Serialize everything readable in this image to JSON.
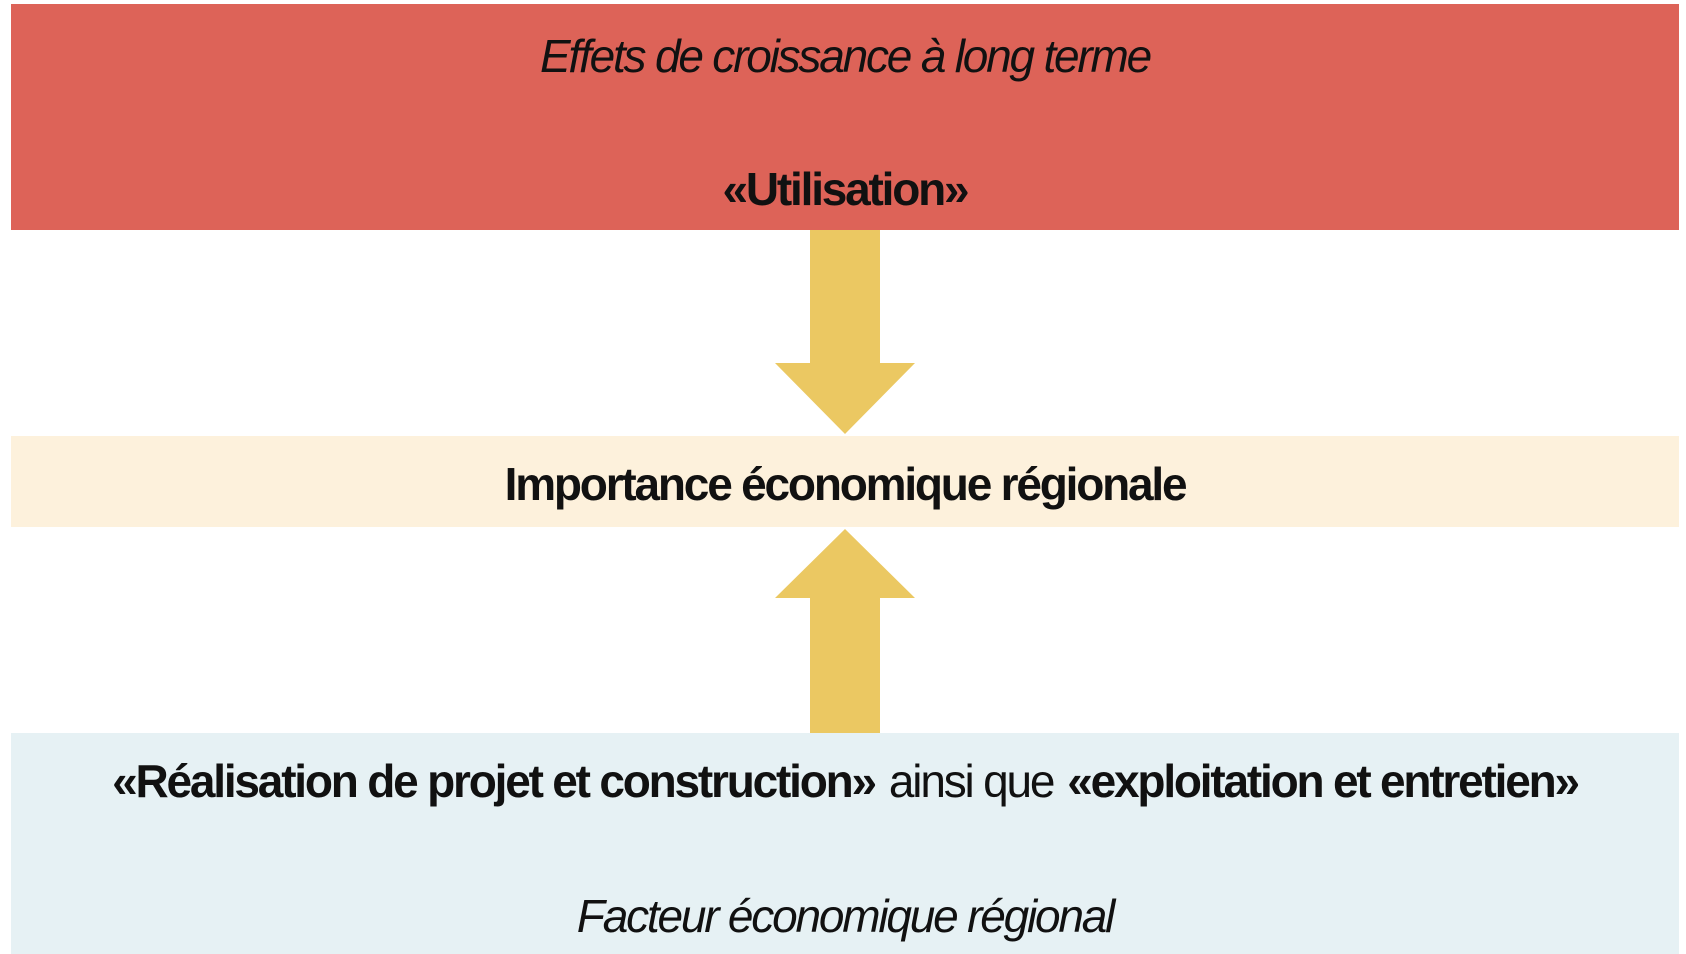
{
  "top_box": {
    "caption": "Effets de croissance à long terme",
    "label": "«Utilisation»"
  },
  "middle_box": {
    "label": "Importance économique régionale"
  },
  "bottom_box": {
    "line": [
      "«Réalisation de projet et construction»",
      "ainsi que",
      "«exploitation et entretien»"
    ],
    "caption": "Facteur économique régional"
  }
}
